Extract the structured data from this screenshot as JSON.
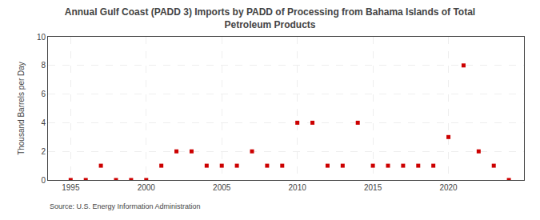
{
  "chart_data": {
    "type": "scatter",
    "title": "Annual Gulf Coast (PADD 3) Imports by PADD of Processing from Bahama Islands of Total\nPetroleum Products",
    "ylabel": "Thousand Barrels per Day",
    "source": "Source: U.S. Energy Information Administration",
    "x": [
      1995,
      1996,
      1997,
      1998,
      1999,
      2000,
      2001,
      2002,
      2003,
      2004,
      2005,
      2006,
      2007,
      2008,
      2009,
      2010,
      2011,
      2012,
      2013,
      2014,
      2015,
      2016,
      2017,
      2018,
      2019,
      2020,
      2021,
      2022,
      2023,
      2024
    ],
    "values": [
      0,
      0,
      1,
      0,
      0,
      0,
      1,
      2,
      2,
      1,
      1,
      1,
      2,
      1,
      1,
      4,
      4,
      1,
      1,
      4,
      1,
      1,
      1,
      1,
      1,
      3,
      8,
      2,
      1,
      0
    ],
    "color": "#cc0000",
    "marker": "square",
    "xlim": [
      1993.5,
      2025
    ],
    "ylim": [
      0,
      10
    ],
    "xticks": [
      1995,
      2000,
      2005,
      2010,
      2015,
      2020
    ],
    "yticks": [
      0,
      2,
      4,
      6,
      8,
      10
    ],
    "grid": true
  }
}
